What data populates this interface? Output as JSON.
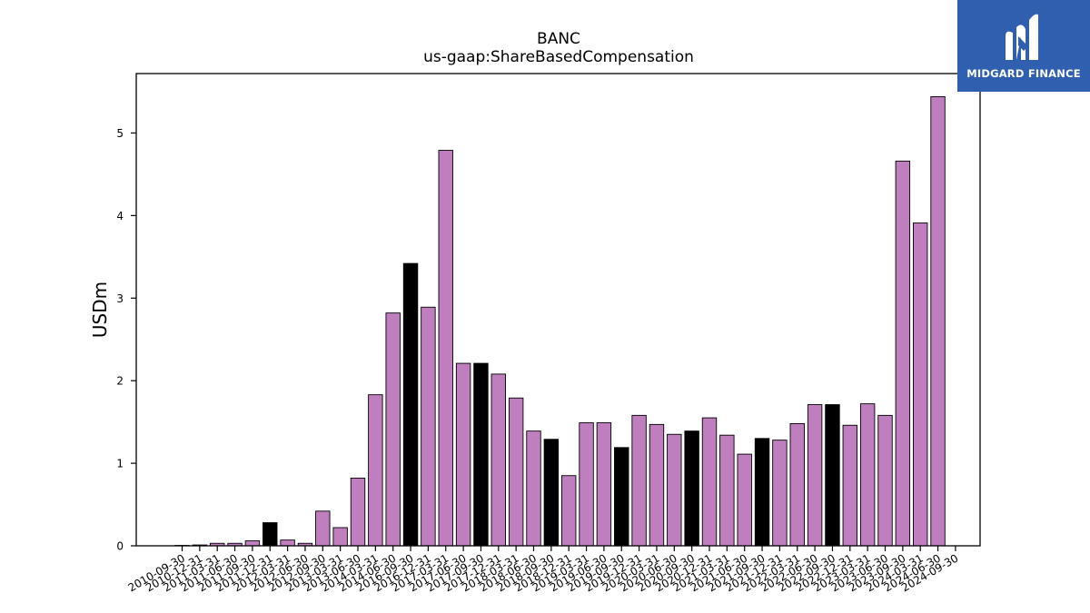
{
  "brand": {
    "name": "MIDGARD FINANCE",
    "color": "#2f5fae"
  },
  "chart_data": {
    "type": "bar",
    "title": "BANC",
    "subtitle": "us-gaap:ShareBasedCompensation",
    "xlabel": "",
    "ylabel": "USDm",
    "ylim": [
      0,
      5.72
    ],
    "yticks": [
      0,
      1,
      2,
      3,
      4,
      5
    ],
    "grid": false,
    "colors": {
      "default": "#bf7fbf",
      "highlight": "#000000",
      "edge": "#000000"
    },
    "categories": [
      "2010-09-30",
      "2010-12-31",
      "2011-03-31",
      "2011-06-30",
      "2011-09-30",
      "2011-12-31",
      "2012-03-31",
      "2012-06-30",
      "2012-09-30",
      "2013-03-31",
      "2013-06-30",
      "2014-03-31",
      "2014-06-30",
      "2016-09-30",
      "2016-12-31",
      "2017-03-31",
      "2017-06-30",
      "2017-09-30",
      "2017-12-31",
      "2018-03-31",
      "2018-06-30",
      "2018-09-30",
      "2018-12-31",
      "2019-03-31",
      "2019-06-30",
      "2019-09-30",
      "2019-12-31",
      "2020-03-31",
      "2020-06-30",
      "2020-09-30",
      "2020-12-31",
      "2021-03-31",
      "2021-06-30",
      "2021-09-30",
      "2021-12-31",
      "2022-03-31",
      "2022-06-30",
      "2022-09-30",
      "2022-12-31",
      "2023-03-31",
      "2023-06-30",
      "2023-09-30",
      "2024-03-31",
      "2024-06-30",
      "2024-09-30"
    ],
    "series": [
      {
        "values": [
          0.005,
          0.01,
          0.03,
          0.03,
          0.06,
          0.28,
          0.07,
          0.03,
          0.42,
          0.22,
          0.82,
          1.83,
          2.82,
          3.42,
          2.89,
          4.79,
          2.21,
          2.21,
          2.08,
          1.79,
          1.39,
          1.29,
          0.85,
          1.49,
          1.49,
          1.19,
          1.58,
          1.47,
          1.35,
          1.39,
          1.55,
          1.34,
          1.11,
          1.3,
          1.28,
          1.48,
          1.71,
          1.71,
          1.46,
          1.72,
          1.58,
          4.66,
          3.91,
          5.44,
          0
        ],
        "highlight": [
          false,
          false,
          false,
          false,
          false,
          true,
          false,
          false,
          false,
          false,
          false,
          false,
          false,
          true,
          false,
          false,
          false,
          true,
          false,
          false,
          false,
          true,
          false,
          false,
          false,
          true,
          false,
          false,
          false,
          true,
          false,
          false,
          false,
          true,
          false,
          false,
          false,
          true,
          false,
          false,
          false,
          false,
          false,
          false,
          false
        ]
      }
    ]
  }
}
